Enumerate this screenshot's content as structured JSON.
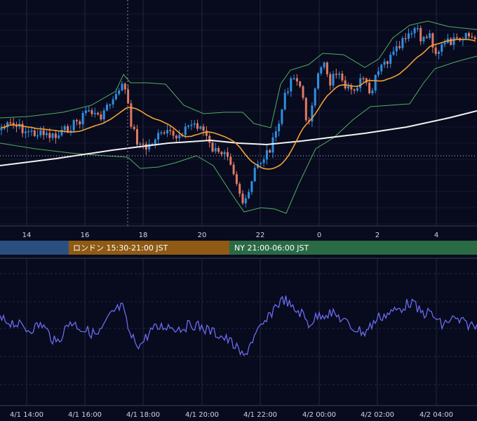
{
  "colors": {
    "background": "#080a1e",
    "grid": "#23283f",
    "candle_up": "#2f8fe0",
    "candle_down": "#e07a63",
    "sma_short": "#f5a033",
    "sma_long": "#f2f2f2",
    "bollinger": "#4fae5f",
    "oscillator": "#6a6cf0",
    "crosshair": "#8b8fa3",
    "session_tokyo": "#2a4f7f",
    "session_london": "#8e5a14",
    "session_ny": "#2a6a45"
  },
  "sessions": [
    {
      "key": "tokyo",
      "label": ""
    },
    {
      "key": "london",
      "label": "ロンドン 15:30-21:00 JST"
    },
    {
      "key": "ny",
      "label": "NY 21:00-06:00 JST"
    }
  ],
  "chart_data": [
    {
      "type": "candlestick",
      "title": "",
      "x_ticks": [
        "14",
        "16",
        "18",
        "20",
        "22",
        "0",
        "2",
        "4"
      ],
      "overlays": [
        "moving-average-short",
        "moving-average-long",
        "bollinger-bands"
      ],
      "grid": true,
      "crosshair_at": "17:30"
    },
    {
      "type": "line",
      "title": "",
      "x_ticks": [
        "4/1 14:00",
        "4/1 16:00",
        "4/1 18:00",
        "4/1 20:00",
        "4/1 22:00",
        "4/2 00:00",
        "4/2 02:00",
        "4/2 04:00"
      ],
      "grid": true
    }
  ]
}
